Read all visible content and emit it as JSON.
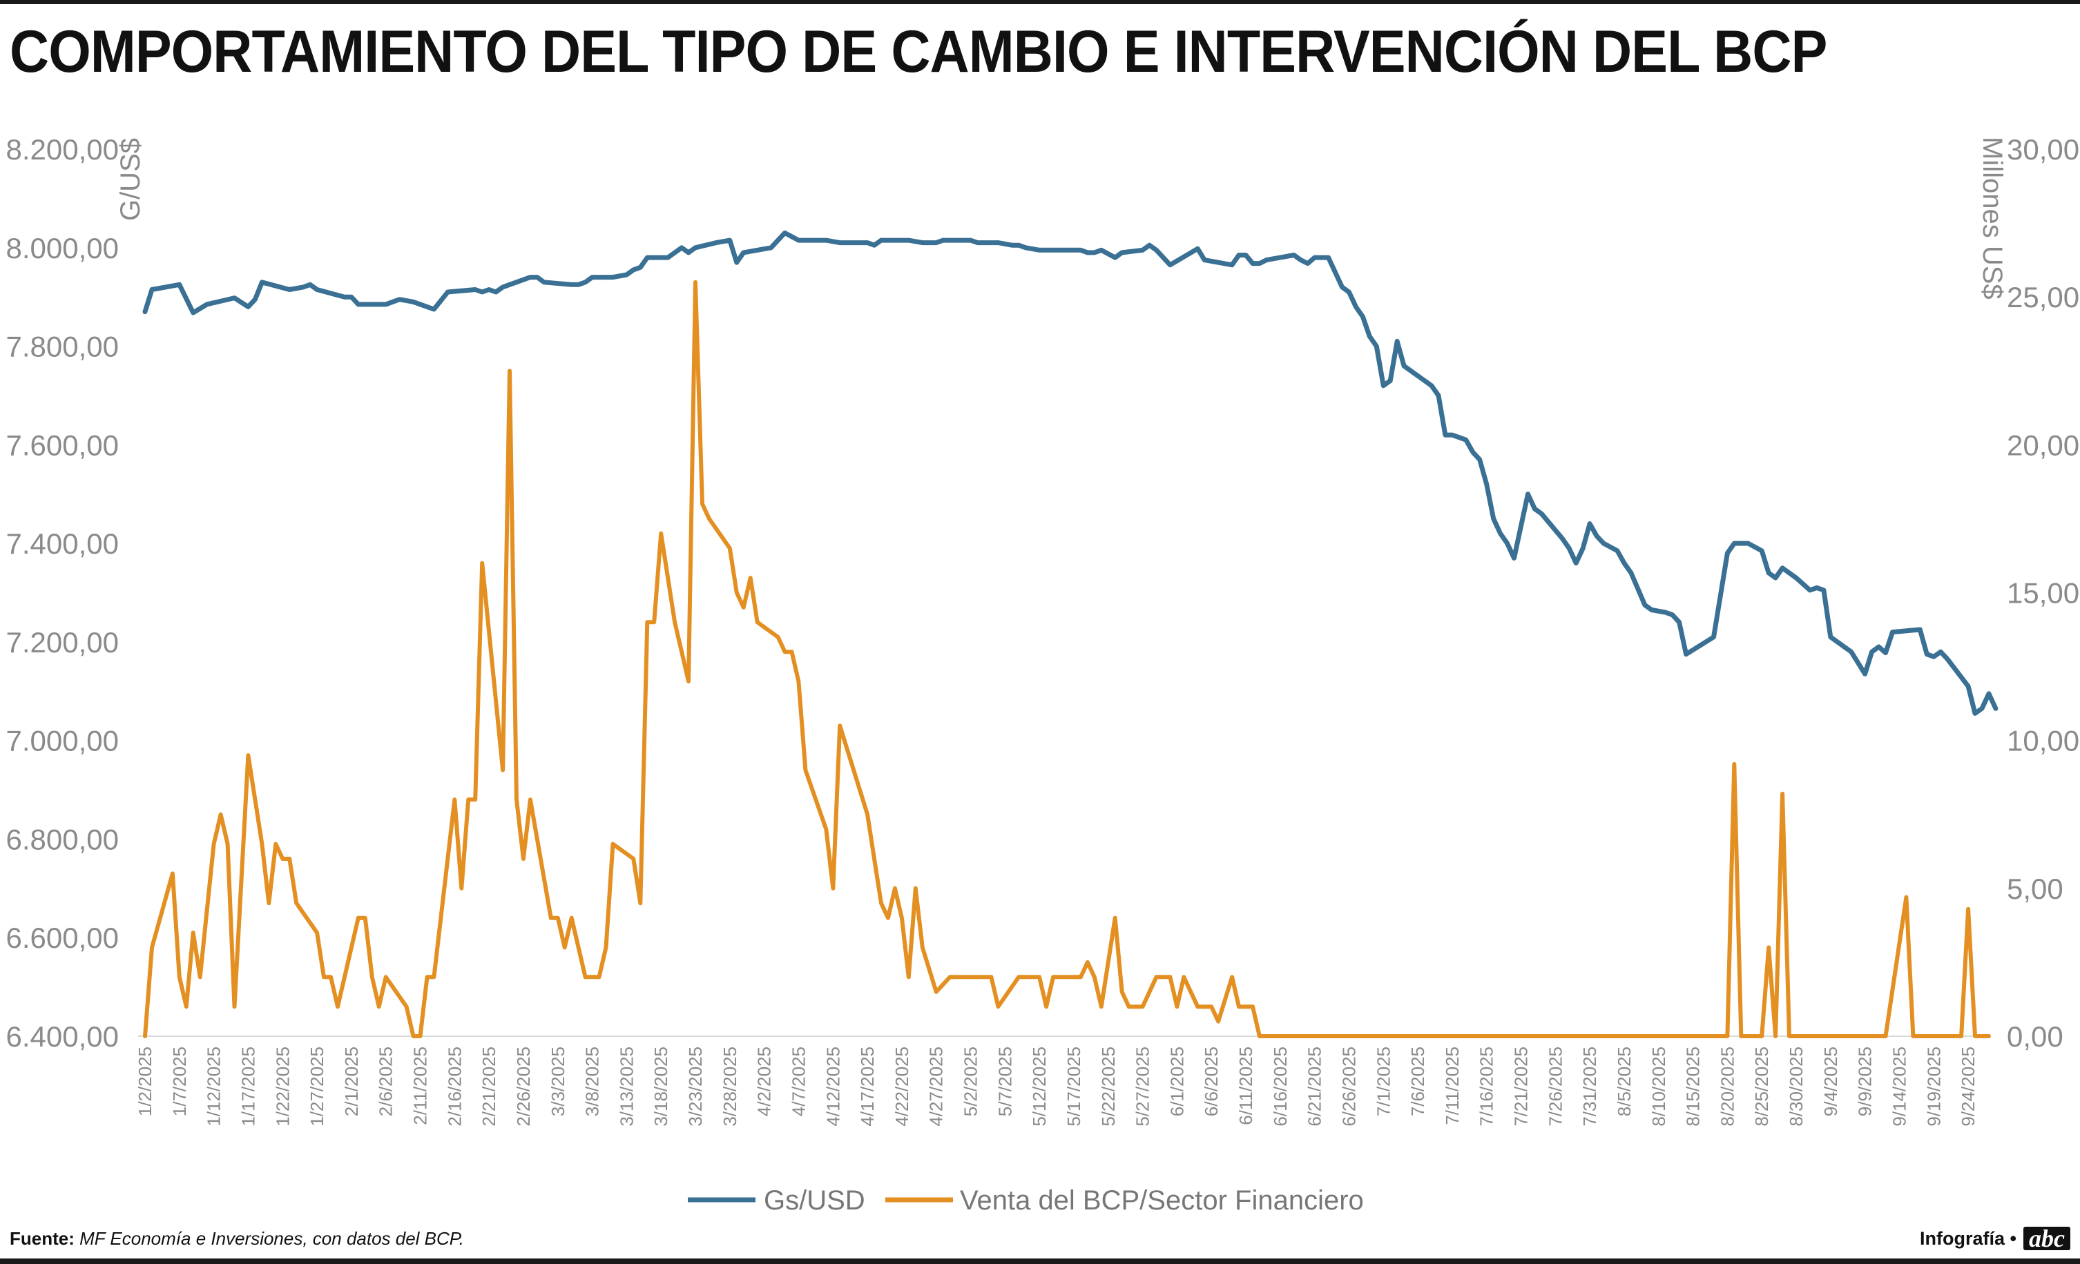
{
  "title": "COMPORTAMIENTO DEL TIPO DE CAMBIO E INTERVENCIÓN DEL BCP",
  "source_label": "Fuente:",
  "source_text": "MF Economía e Inversiones, con datos del BCP.",
  "credit_label": "Infografía •",
  "credit_logo": "abc",
  "chart_data": {
    "type": "line",
    "ylabel": "G/US$",
    "y2label": "Millones US$",
    "ylim": [
      6400,
      8200
    ],
    "y2lim": [
      0,
      30
    ],
    "yticks": [
      "6.400,00",
      "6.600,00",
      "6.800,00",
      "7.000,00",
      "7.200,00",
      "7.400,00",
      "7.600,00",
      "7.800,00",
      "8.000,00",
      "8.200,00"
    ],
    "y2ticks": [
      "0,00",
      "5,00",
      "10,00",
      "15,00",
      "20,00",
      "25,00",
      "30,00"
    ],
    "xrange_day": [
      0,
      267
    ],
    "xticks": [
      "1/2/2025",
      "1/7/2025",
      "1/12/2025",
      "1/17/2025",
      "1/22/2025",
      "1/27/2025",
      "2/1/2025",
      "2/6/2025",
      "2/11/2025",
      "2/16/2025",
      "2/21/2025",
      "2/26/2025",
      "3/3/2025",
      "3/8/2025",
      "3/13/2025",
      "3/18/2025",
      "3/23/2025",
      "3/28/2025",
      "4/2/2025",
      "4/7/2025",
      "4/12/2025",
      "4/17/2025",
      "4/22/2025",
      "4/27/2025",
      "5/2/2025",
      "5/7/2025",
      "5/12/2025",
      "5/17/2025",
      "5/22/2025",
      "5/27/2025",
      "6/1/2025",
      "6/6/2025",
      "6/11/2025",
      "6/16/2025",
      "6/21/2025",
      "6/26/2025",
      "7/1/2025",
      "7/6/2025",
      "7/11/2025",
      "7/16/2025",
      "7/21/2025",
      "7/26/2025",
      "7/31/2025",
      "8/5/2025",
      "8/10/2025",
      "8/15/2025",
      "8/20/2025",
      "8/25/2025",
      "8/30/2025",
      "9/4/2025",
      "9/9/2025",
      "9/14/2025",
      "9/19/2025",
      "9/24/2025"
    ],
    "legend_position": "bottom-center",
    "grid": false,
    "series": [
      {
        "name": "Gs/USD",
        "axis": "left",
        "color": "#3a7094",
        "points": [
          [
            0,
            7870
          ],
          [
            1,
            7915
          ],
          [
            5,
            7925
          ],
          [
            7,
            7868
          ],
          [
            9,
            7885
          ],
          [
            13,
            7898
          ],
          [
            15,
            7880
          ],
          [
            16,
            7895
          ],
          [
            17,
            7930
          ],
          [
            21,
            7915
          ],
          [
            23,
            7920
          ],
          [
            24,
            7925
          ],
          [
            25,
            7915
          ],
          [
            29,
            7900
          ],
          [
            30,
            7900
          ],
          [
            31,
            7885
          ],
          [
            35,
            7885
          ],
          [
            37,
            7895
          ],
          [
            39,
            7890
          ],
          [
            42,
            7875
          ],
          [
            44,
            7910
          ],
          [
            48,
            7915
          ],
          [
            49,
            7910
          ],
          [
            50,
            7915
          ],
          [
            51,
            7910
          ],
          [
            52,
            7920
          ],
          [
            53,
            7925
          ],
          [
            56,
            7940
          ],
          [
            57,
            7940
          ],
          [
            58,
            7930
          ],
          [
            62,
            7925
          ],
          [
            63,
            7925
          ],
          [
            64,
            7930
          ],
          [
            65,
            7940
          ],
          [
            68,
            7940
          ],
          [
            70,
            7945
          ],
          [
            71,
            7955
          ],
          [
            72,
            7960
          ],
          [
            73,
            7980
          ],
          [
            76,
            7980
          ],
          [
            77,
            7990
          ],
          [
            78,
            8000
          ],
          [
            79,
            7990
          ],
          [
            80,
            8000
          ],
          [
            83,
            8010
          ],
          [
            85,
            8015
          ],
          [
            86,
            7970
          ],
          [
            87,
            7990
          ],
          [
            91,
            8000
          ],
          [
            93,
            8030
          ],
          [
            95,
            8015
          ],
          [
            99,
            8015
          ],
          [
            101,
            8010
          ],
          [
            105,
            8010
          ],
          [
            106,
            8005
          ],
          [
            107,
            8015
          ],
          [
            111,
            8015
          ],
          [
            113,
            8010
          ],
          [
            115,
            8010
          ],
          [
            116,
            8015
          ],
          [
            119,
            8015
          ],
          [
            120,
            8015
          ],
          [
            121,
            8010
          ],
          [
            124,
            8010
          ],
          [
            126,
            8005
          ],
          [
            127,
            8005
          ],
          [
            128,
            8000
          ],
          [
            130,
            7995
          ],
          [
            133,
            7995
          ],
          [
            136,
            7995
          ],
          [
            137,
            7990
          ],
          [
            138,
            7990
          ],
          [
            139,
            7995
          ],
          [
            141,
            7980
          ],
          [
            142,
            7990
          ],
          [
            145,
            7995
          ],
          [
            146,
            8005
          ],
          [
            147,
            7995
          ],
          [
            149,
            7965
          ],
          [
            153,
            7998
          ],
          [
            154,
            7975
          ],
          [
            156,
            7970
          ],
          [
            158,
            7965
          ],
          [
            159,
            7985
          ],
          [
            160,
            7985
          ],
          [
            161,
            7968
          ],
          [
            162,
            7968
          ],
          [
            163,
            7975
          ],
          [
            165,
            7980
          ],
          [
            167,
            7985
          ],
          [
            168,
            7975
          ],
          [
            169,
            7968
          ],
          [
            170,
            7980
          ],
          [
            172,
            7980
          ],
          [
            174,
            7920
          ],
          [
            175,
            7910
          ],
          [
            176,
            7880
          ],
          [
            177,
            7860
          ],
          [
            178,
            7820
          ],
          [
            179,
            7800
          ],
          [
            180,
            7720
          ],
          [
            181,
            7730
          ],
          [
            182,
            7810
          ],
          [
            183,
            7760
          ],
          [
            187,
            7720
          ],
          [
            188,
            7700
          ],
          [
            189,
            7620
          ],
          [
            190,
            7620
          ],
          [
            192,
            7610
          ],
          [
            193,
            7585
          ],
          [
            194,
            7570
          ],
          [
            195,
            7520
          ],
          [
            196,
            7450
          ],
          [
            197,
            7420
          ],
          [
            198,
            7400
          ],
          [
            199,
            7370
          ],
          [
            201,
            7500
          ],
          [
            202,
            7470
          ],
          [
            203,
            7460
          ],
          [
            206,
            7410
          ],
          [
            207,
            7390
          ],
          [
            208,
            7360
          ],
          [
            209,
            7390
          ],
          [
            210,
            7440
          ],
          [
            211,
            7415
          ],
          [
            212,
            7400
          ],
          [
            214,
            7385
          ],
          [
            215,
            7360
          ],
          [
            216,
            7340
          ],
          [
            218,
            7275
          ],
          [
            219,
            7265
          ],
          [
            221,
            7260
          ],
          [
            222,
            7255
          ],
          [
            223,
            7240
          ],
          [
            224,
            7175
          ],
          [
            228,
            7210
          ],
          [
            230,
            7380
          ],
          [
            231,
            7400
          ],
          [
            233,
            7400
          ],
          [
            235,
            7385
          ],
          [
            236,
            7340
          ],
          [
            237,
            7330
          ],
          [
            238,
            7350
          ],
          [
            240,
            7330
          ],
          [
            242,
            7305
          ],
          [
            243,
            7310
          ],
          [
            244,
            7305
          ],
          [
            245,
            7210
          ],
          [
            248,
            7180
          ],
          [
            250,
            7135
          ],
          [
            251,
            7180
          ],
          [
            252,
            7190
          ],
          [
            253,
            7178
          ],
          [
            254,
            7220
          ],
          [
            258,
            7225
          ],
          [
            259,
            7175
          ],
          [
            260,
            7170
          ],
          [
            261,
            7180
          ],
          [
            262,
            7165
          ],
          [
            265,
            7110
          ],
          [
            266,
            7055
          ],
          [
            267,
            7065
          ],
          [
            268,
            7095
          ],
          [
            269,
            7065
          ]
        ]
      },
      {
        "name": "Venta del BCP/Sector Financiero",
        "axis": "right",
        "color": "#e48f22",
        "points": [
          [
            0,
            0
          ],
          [
            1,
            3
          ],
          [
            4,
            5.5
          ],
          [
            5,
            2
          ],
          [
            6,
            1
          ],
          [
            7,
            3.5
          ],
          [
            8,
            2
          ],
          [
            10,
            6.5
          ],
          [
            11,
            7.5
          ],
          [
            12,
            6.5
          ],
          [
            13,
            1
          ],
          [
            15,
            9.5
          ],
          [
            17,
            6.5
          ],
          [
            18,
            4.5
          ],
          [
            19,
            6.5
          ],
          [
            20,
            6
          ],
          [
            21,
            6
          ],
          [
            22,
            4.5
          ],
          [
            25,
            3.5
          ],
          [
            26,
            2
          ],
          [
            27,
            2
          ],
          [
            28,
            1
          ],
          [
            31,
            4
          ],
          [
            32,
            4
          ],
          [
            33,
            2
          ],
          [
            34,
            1
          ],
          [
            35,
            2
          ],
          [
            38,
            1
          ],
          [
            39,
            0
          ],
          [
            40,
            0
          ],
          [
            41,
            2
          ],
          [
            42,
            2
          ],
          [
            45,
            8
          ],
          [
            46,
            5
          ],
          [
            47,
            8
          ],
          [
            48,
            8
          ],
          [
            49,
            16
          ],
          [
            52,
            9
          ],
          [
            53,
            22.5
          ],
          [
            54,
            8
          ],
          [
            55,
            6
          ],
          [
            56,
            8
          ],
          [
            59,
            4
          ],
          [
            60,
            4
          ],
          [
            61,
            3
          ],
          [
            62,
            4
          ],
          [
            64,
            2
          ],
          [
            66,
            2
          ],
          [
            67,
            3
          ],
          [
            68,
            6.5
          ],
          [
            71,
            6
          ],
          [
            72,
            4.5
          ],
          [
            73,
            14
          ],
          [
            74,
            14
          ],
          [
            75,
            17
          ],
          [
            77,
            14
          ],
          [
            78,
            13
          ],
          [
            79,
            12
          ],
          [
            80,
            25.5
          ],
          [
            81,
            18
          ],
          [
            82,
            17.5
          ],
          [
            85,
            16.5
          ],
          [
            86,
            15
          ],
          [
            87,
            14.5
          ],
          [
            88,
            15.5
          ],
          [
            89,
            14
          ],
          [
            92,
            13.5
          ],
          [
            93,
            13
          ],
          [
            94,
            13
          ],
          [
            95,
            12
          ],
          [
            96,
            9
          ],
          [
            99,
            7
          ],
          [
            100,
            5
          ],
          [
            101,
            10.5
          ],
          [
            105,
            7.5
          ],
          [
            106,
            6
          ],
          [
            107,
            4.5
          ],
          [
            108,
            4
          ],
          [
            109,
            5
          ],
          [
            110,
            4
          ],
          [
            111,
            2
          ],
          [
            112,
            5
          ],
          [
            113,
            3
          ],
          [
            115,
            1.5
          ],
          [
            117,
            2
          ],
          [
            119,
            2
          ],
          [
            123,
            2
          ],
          [
            124,
            1
          ],
          [
            127,
            2
          ],
          [
            130,
            2
          ],
          [
            131,
            1
          ],
          [
            132,
            2
          ],
          [
            136,
            2
          ],
          [
            137,
            2.5
          ],
          [
            138,
            2
          ],
          [
            139,
            1
          ],
          [
            141,
            4
          ],
          [
            142,
            1.5
          ],
          [
            143,
            1
          ],
          [
            145,
            1
          ],
          [
            147,
            2
          ],
          [
            149,
            2
          ],
          [
            150,
            1
          ],
          [
            151,
            2
          ],
          [
            153,
            1
          ],
          [
            155,
            1
          ],
          [
            156,
            0.5
          ],
          [
            158,
            2
          ],
          [
            159,
            1
          ],
          [
            161,
            1
          ],
          [
            162,
            0
          ],
          [
            230,
            0
          ],
          [
            231,
            9.2
          ],
          [
            232,
            0
          ],
          [
            235,
            0
          ],
          [
            236,
            3
          ],
          [
            237,
            0
          ],
          [
            238,
            8.2
          ],
          [
            239,
            0
          ],
          [
            250,
            0
          ],
          [
            253,
            0
          ],
          [
            256,
            4.7
          ],
          [
            257,
            0
          ],
          [
            264,
            0
          ],
          [
            265,
            4.3
          ],
          [
            266,
            0
          ],
          [
            268,
            0
          ]
        ]
      }
    ]
  }
}
